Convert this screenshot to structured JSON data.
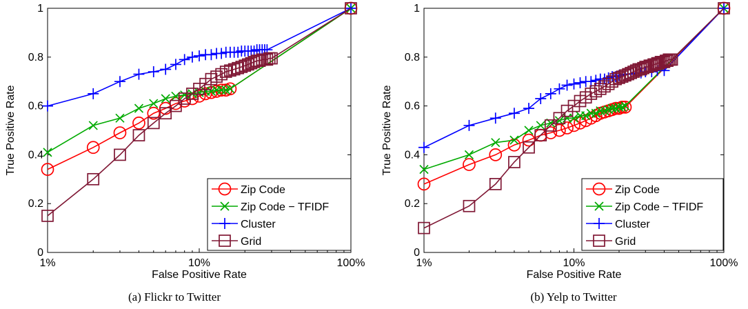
{
  "chart_data": [
    {
      "type": "line",
      "caption": "(a) Flickr to Twitter",
      "xlabel": "False Positive Rate",
      "ylabel": "True Positive Rate",
      "xscale": "log",
      "xlim": [
        0.01,
        1
      ],
      "ylim": [
        0,
        1
      ],
      "xticks": [
        0.01,
        0.1,
        1
      ],
      "xtick_labels": [
        "1%",
        "10%",
        "100%"
      ],
      "yticks": [
        0,
        0.2,
        0.4,
        0.6,
        0.8,
        1
      ],
      "ytick_labels": [
        "0",
        "0.2",
        "0.4",
        "0.6",
        "0.8",
        "1"
      ],
      "grid": false,
      "legend_position": "bottom-right",
      "series": [
        {
          "name": "Zip Code",
          "color": "#ff0000",
          "marker": "circle",
          "x": [
            0.01,
            0.02,
            0.03,
            0.04,
            0.05,
            0.06,
            0.07,
            0.08,
            0.09,
            0.1,
            0.11,
            0.12,
            0.13,
            0.14,
            0.15,
            0.16,
            1.0
          ],
          "y": [
            0.34,
            0.43,
            0.49,
            0.53,
            0.57,
            0.59,
            0.61,
            0.62,
            0.63,
            0.64,
            0.65,
            0.655,
            0.66,
            0.665,
            0.665,
            0.67,
            1.0
          ]
        },
        {
          "name": "Zip Code − TFIDF",
          "color": "#00aa00",
          "marker": "x",
          "x": [
            0.01,
            0.02,
            0.03,
            0.04,
            0.05,
            0.06,
            0.07,
            0.08,
            0.09,
            0.1,
            0.11,
            0.12,
            0.13,
            0.14,
            0.15,
            0.16,
            1.0
          ],
          "y": [
            0.41,
            0.52,
            0.55,
            0.59,
            0.61,
            0.63,
            0.64,
            0.645,
            0.65,
            0.655,
            0.66,
            0.66,
            0.665,
            0.665,
            0.665,
            0.67,
            1.0
          ]
        },
        {
          "name": "Cluster",
          "color": "#0000ff",
          "marker": "plus",
          "x": [
            0.01,
            0.02,
            0.03,
            0.04,
            0.05,
            0.06,
            0.07,
            0.08,
            0.09,
            0.1,
            0.11,
            0.12,
            0.13,
            0.14,
            0.15,
            0.16,
            0.17,
            0.18,
            0.19,
            0.2,
            0.21,
            0.22,
            0.23,
            0.24,
            0.25,
            0.26,
            0.27,
            0.28,
            1.0
          ],
          "y": [
            0.6,
            0.65,
            0.7,
            0.73,
            0.74,
            0.75,
            0.77,
            0.79,
            0.8,
            0.805,
            0.81,
            0.81,
            0.815,
            0.815,
            0.82,
            0.82,
            0.82,
            0.82,
            0.825,
            0.825,
            0.825,
            0.825,
            0.825,
            0.83,
            0.83,
            0.83,
            0.83,
            0.83,
            1.0
          ]
        },
        {
          "name": "Grid",
          "color": "#7f1734",
          "marker": "square",
          "x": [
            0.01,
            0.02,
            0.03,
            0.04,
            0.05,
            0.06,
            0.07,
            0.08,
            0.09,
            0.1,
            0.11,
            0.12,
            0.13,
            0.14,
            0.15,
            0.16,
            0.17,
            0.18,
            0.19,
            0.2,
            0.21,
            0.22,
            0.23,
            0.24,
            0.25,
            0.26,
            0.27,
            0.28,
            0.29,
            0.3,
            1.0
          ],
          "y": [
            0.15,
            0.3,
            0.4,
            0.48,
            0.53,
            0.57,
            0.6,
            0.63,
            0.65,
            0.67,
            0.69,
            0.71,
            0.72,
            0.73,
            0.74,
            0.745,
            0.75,
            0.755,
            0.76,
            0.765,
            0.77,
            0.775,
            0.78,
            0.785,
            0.785,
            0.79,
            0.79,
            0.79,
            0.795,
            0.795,
            1.0
          ]
        }
      ]
    },
    {
      "type": "line",
      "caption": "(b) Yelp to Twitter",
      "xlabel": "False Positive Rate",
      "ylabel": "True Positive Rate",
      "xscale": "log",
      "xlim": [
        0.01,
        1
      ],
      "ylim": [
        0,
        1
      ],
      "xticks": [
        0.01,
        0.1,
        1
      ],
      "xtick_labels": [
        "1%",
        "10%",
        "100%"
      ],
      "yticks": [
        0,
        0.2,
        0.4,
        0.6,
        0.8,
        1
      ],
      "ytick_labels": [
        "0",
        "0.2",
        "0.4",
        "0.6",
        "0.8",
        "1"
      ],
      "grid": false,
      "legend_position": "bottom-right",
      "series": [
        {
          "name": "Zip Code",
          "color": "#ff0000",
          "marker": "circle",
          "x": [
            0.01,
            0.02,
            0.03,
            0.04,
            0.05,
            0.06,
            0.07,
            0.08,
            0.09,
            0.1,
            0.11,
            0.12,
            0.13,
            0.14,
            0.15,
            0.16,
            0.17,
            0.18,
            0.19,
            0.2,
            0.21,
            0.22,
            1.0
          ],
          "y": [
            0.28,
            0.36,
            0.4,
            0.44,
            0.46,
            0.48,
            0.49,
            0.5,
            0.51,
            0.52,
            0.53,
            0.54,
            0.55,
            0.56,
            0.57,
            0.575,
            0.58,
            0.585,
            0.59,
            0.59,
            0.595,
            0.595,
            1.0
          ]
        },
        {
          "name": "Zip Code − TFIDF",
          "color": "#00aa00",
          "marker": "x",
          "x": [
            0.01,
            0.02,
            0.03,
            0.04,
            0.05,
            0.06,
            0.07,
            0.08,
            0.09,
            0.1,
            0.11,
            0.12,
            0.13,
            0.14,
            0.15,
            0.16,
            0.17,
            0.18,
            0.19,
            0.2,
            0.21,
            0.22,
            1.0
          ],
          "y": [
            0.34,
            0.4,
            0.45,
            0.46,
            0.5,
            0.52,
            0.53,
            0.54,
            0.55,
            0.55,
            0.56,
            0.56,
            0.57,
            0.57,
            0.58,
            0.58,
            0.585,
            0.59,
            0.59,
            0.595,
            0.595,
            0.6,
            1.0
          ]
        },
        {
          "name": "Cluster",
          "color": "#0000ff",
          "marker": "plus",
          "x": [
            0.01,
            0.02,
            0.03,
            0.04,
            0.05,
            0.06,
            0.07,
            0.08,
            0.09,
            0.1,
            0.11,
            0.12,
            0.13,
            0.14,
            0.15,
            0.16,
            0.17,
            0.18,
            0.19,
            0.2,
            0.22,
            0.24,
            0.26,
            0.28,
            0.3,
            0.33,
            0.36,
            0.4,
            1.0
          ],
          "y": [
            0.43,
            0.52,
            0.55,
            0.57,
            0.59,
            0.63,
            0.65,
            0.67,
            0.685,
            0.69,
            0.695,
            0.7,
            0.7,
            0.705,
            0.71,
            0.71,
            0.715,
            0.72,
            0.72,
            0.725,
            0.73,
            0.73,
            0.735,
            0.735,
            0.74,
            0.74,
            0.745,
            0.745,
            1.0
          ]
        },
        {
          "name": "Grid",
          "color": "#7f1734",
          "marker": "square",
          "x": [
            0.01,
            0.02,
            0.03,
            0.04,
            0.05,
            0.06,
            0.07,
            0.08,
            0.09,
            0.1,
            0.11,
            0.12,
            0.13,
            0.14,
            0.15,
            0.16,
            0.17,
            0.18,
            0.19,
            0.2,
            0.21,
            0.22,
            0.23,
            0.24,
            0.25,
            0.26,
            0.27,
            0.28,
            0.29,
            0.3,
            0.31,
            0.32,
            0.33,
            0.34,
            0.35,
            0.36,
            0.37,
            0.38,
            0.39,
            0.4,
            0.41,
            0.42,
            0.43,
            0.44,
            0.45,
            1.0
          ],
          "y": [
            0.1,
            0.19,
            0.28,
            0.37,
            0.43,
            0.48,
            0.52,
            0.55,
            0.58,
            0.6,
            0.62,
            0.635,
            0.65,
            0.66,
            0.67,
            0.68,
            0.69,
            0.7,
            0.71,
            0.715,
            0.72,
            0.725,
            0.73,
            0.735,
            0.74,
            0.745,
            0.75,
            0.75,
            0.755,
            0.76,
            0.76,
            0.765,
            0.765,
            0.77,
            0.77,
            0.775,
            0.775,
            0.78,
            0.78,
            0.78,
            0.785,
            0.785,
            0.79,
            0.79,
            0.79,
            1.0
          ]
        }
      ]
    }
  ]
}
